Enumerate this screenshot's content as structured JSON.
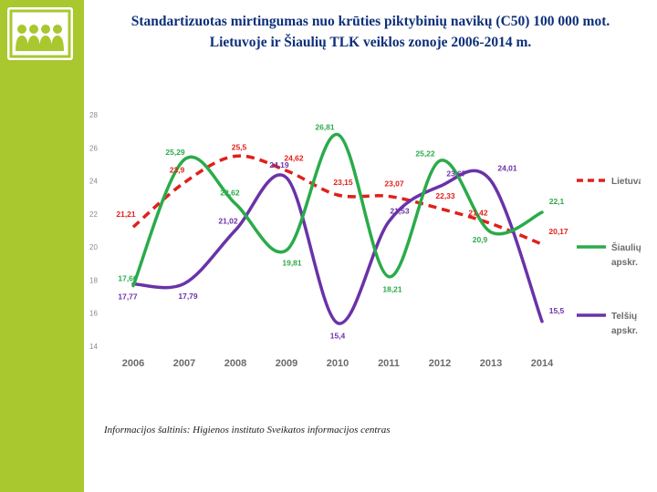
{
  "page": {
    "title_line1": "Standartizuotas mirtingumas nuo krūties piktybinių navikų (C50) 100 000 mot.",
    "title_line2": "Lietuvoje ir Šiaulių TLK veiklos zonoje 2006-2014 m.",
    "source": "Informacijos šaltinis: Higienos instituto Sveikatos informacijos centras"
  },
  "colors": {
    "sidebar": "#a9c72e",
    "lietuva": "#e0201b",
    "siauliu": "#2aab4a",
    "telsiu": "#6a32a8",
    "title": "#0d2f7a"
  },
  "chart_data": {
    "type": "line",
    "title": "",
    "xlabel": "",
    "ylabel": "",
    "categories": [
      "2006",
      "2007",
      "2008",
      "2009",
      "2010",
      "2011",
      "2012",
      "2013",
      "2014"
    ],
    "ylim": [
      14,
      28
    ],
    "yticks": [
      "14",
      "16",
      "18",
      "20",
      "22",
      "24",
      "26",
      "28"
    ],
    "legend_position": "right",
    "series": [
      {
        "name": "Lietuva",
        "legend_line1": "Lietuva",
        "legend_line2": "",
        "style": "dashed",
        "color": "#e0201b",
        "values": [
          21.21,
          23.9,
          25.5,
          24.62,
          23.15,
          23.07,
          22.33,
          21.42,
          20.17
        ],
        "labels": [
          "21,21",
          "23,9",
          "25,5",
          "24,62",
          "23,15",
          "23,07",
          "22,33",
          "21,42",
          "20,17"
        ]
      },
      {
        "name": "Šiaulių apskr.",
        "legend_line1": "Šiaulių",
        "legend_line2": "apskr.",
        "style": "solid",
        "color": "#2aab4a",
        "values": [
          17.66,
          25.29,
          22.62,
          19.81,
          26.81,
          18.21,
          25.22,
          20.9,
          22.1
        ],
        "labels": [
          "17,66",
          "25,29",
          "22,62",
          "19,81",
          "26,81",
          "18,21",
          "25,22",
          "20,9",
          "22,1"
        ]
      },
      {
        "name": "Telšių apskr.",
        "legend_line1": "Telšių",
        "legend_line2": "apskr.",
        "style": "solid",
        "color": "#6a32a8",
        "values": [
          17.77,
          17.79,
          21.02,
          24.19,
          15.4,
          21.53,
          23.67,
          24.01,
          15.5
        ],
        "labels": [
          "17,77",
          "17,79",
          "21,02",
          "24,19",
          "15,4",
          "21,53",
          "23,67",
          "24,01",
          "15,5"
        ]
      }
    ]
  }
}
